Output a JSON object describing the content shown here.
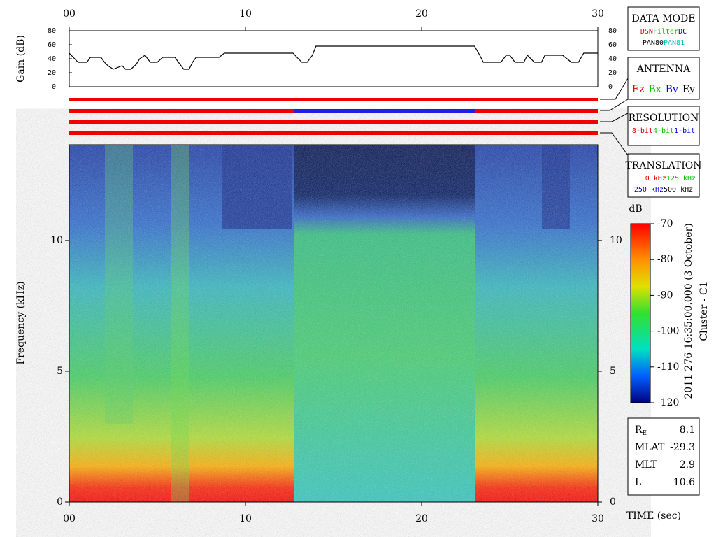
{
  "chart_data": [
    {
      "type": "line",
      "y_label": "Gain (dB)",
      "xlim": [
        0,
        30
      ],
      "xticks": [
        {
          "value": 0,
          "label": "00"
        },
        10,
        20,
        30
      ],
      "ylim": [
        0,
        80
      ],
      "yticks": [
        0,
        20,
        40,
        60,
        80
      ],
      "color": "#000000",
      "x": [
        0,
        0.5,
        1,
        1.2,
        1.8,
        2,
        2.2,
        2.5,
        3,
        3.2,
        3.5,
        3.8,
        4,
        4.3,
        4.6,
        5,
        5.3,
        6,
        6.2,
        6.5,
        6.8,
        7,
        7.2,
        8.5,
        8.8,
        12.7,
        13,
        13.2,
        13.5,
        13.8,
        14,
        23,
        23.3,
        23.5,
        24.5,
        24.8,
        25,
        25.3,
        25.8,
        26,
        26.4,
        26.8,
        27,
        28,
        28.5,
        28.9,
        29.2,
        30
      ],
      "values": [
        48,
        35,
        35,
        42,
        42,
        35,
        30,
        25,
        30,
        25,
        25,
        32,
        40,
        45,
        35,
        35,
        42,
        42,
        35,
        25,
        25,
        35,
        42,
        42,
        48,
        48,
        40,
        35,
        35,
        45,
        58,
        58,
        45,
        35,
        35,
        45,
        45,
        35,
        35,
        45,
        35,
        35,
        45,
        45,
        35,
        35,
        48,
        48
      ]
    },
    {
      "type": "heatmap",
      "x_label": "TIME (sec)",
      "y_label": "Frequency (kHz)",
      "xlim": [
        0,
        30
      ],
      "xticks": [
        {
          "value": 0,
          "label": "00"
        },
        10,
        20,
        30
      ],
      "ylim": [
        0,
        13.66
      ],
      "yticks": [
        0,
        5,
        10
      ],
      "colorbar": {
        "title": "dB",
        "lim": [
          -120,
          -70
        ],
        "ticks": [
          -70,
          -80,
          -90,
          -100,
          -110,
          -120
        ]
      }
    }
  ],
  "panels": [
    {
      "title": "DATA MODE",
      "rows": [
        [
          {
            "text": "DSN",
            "color": "#e00000"
          },
          {
            "text": "Filter",
            "color": "#00c000"
          },
          {
            "text": "DC",
            "color": "#0000e0"
          }
        ],
        [
          {
            "text": "PAN80",
            "color": "#000000"
          },
          {
            "text": "PAN81",
            "color": "#00c0c0"
          }
        ]
      ]
    },
    {
      "title": "ANTENNA",
      "rows": [
        [
          {
            "text": "Ez",
            "color": "#e00000"
          },
          {
            "text": "Bx",
            "color": "#00c000"
          },
          {
            "text": "By",
            "color": "#0000e0"
          },
          {
            "text": "Ey",
            "color": "#000000"
          }
        ]
      ]
    },
    {
      "title": "RESOLUTION",
      "rows": [
        [
          {
            "text": "8-bit",
            "color": "#e00000"
          },
          {
            "text": "4-bit",
            "color": "#00c000"
          },
          {
            "text": "1-bit",
            "color": "#0000e0"
          }
        ]
      ]
    },
    {
      "title": "TRANSLATION",
      "rows": [
        [
          {
            "text": "0 kHz",
            "color": "#e00000"
          },
          {
            "text": "125 kHz",
            "color": "#00c000"
          }
        ],
        [
          {
            "text": "250 kHz",
            "color": "#0000e0"
          },
          {
            "text": "500 kHz",
            "color": "#000000"
          }
        ]
      ]
    }
  ],
  "orbit": [
    {
      "label": "R",
      "sub": "E",
      "value": 8.1
    },
    {
      "label": "MLAT",
      "value": -29.3
    },
    {
      "label": "MLT",
      "value": 2.9
    },
    {
      "label": "L",
      "value": 10.6
    }
  ],
  "timestamp": "2011 276 16:35:00.000 (3 October)",
  "spacecraft": "Cluster - C1"
}
